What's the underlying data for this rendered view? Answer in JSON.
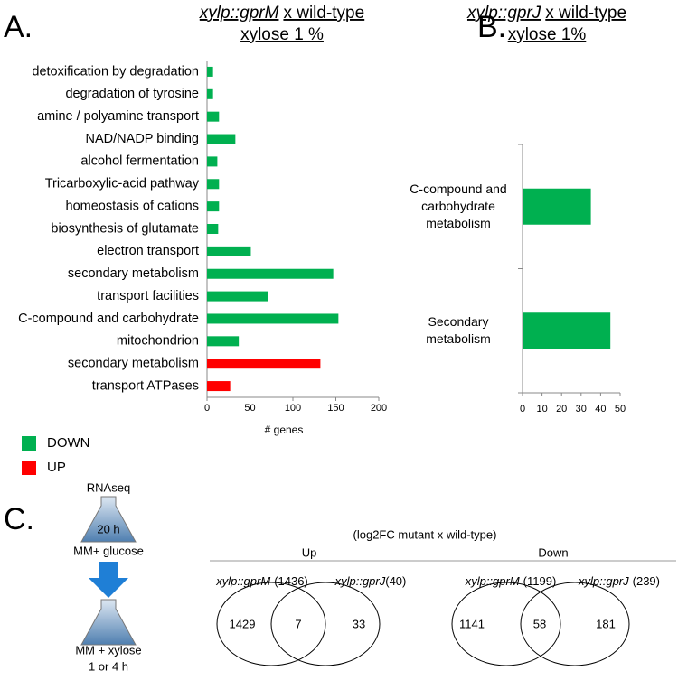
{
  "panels": [
    "A.",
    "B.",
    "C."
  ],
  "chart_data": [
    {
      "type": "bar",
      "orientation": "horizontal",
      "title": {
        "italic": "xylp::gprM",
        "rest": "x wild-type"
      },
      "subtitle": "xylose 1 %",
      "x_label": "# genes",
      "categories": [
        "detoxification by degradation",
        "degradation of tyrosine",
        "amine / polyamine transport",
        "NAD/NADP binding",
        "alcohol fermentation",
        "Tricarboxylic-acid pathway",
        "homeostasis of cations",
        "biosynthesis of glutamate",
        "electron transport",
        "secondary metabolism",
        "transport facilities",
        "C-compound and carbohydrate",
        "mitochondrion",
        "secondary metabolism",
        "transport ATPases"
      ],
      "series": [
        {
          "name": "DOWN",
          "color": "#00b050",
          "values": [
            7,
            7,
            14,
            33,
            12,
            14,
            14,
            13,
            51,
            147,
            71,
            153,
            37,
            null,
            null
          ]
        },
        {
          "name": "UP",
          "color": "#ff0000",
          "values": [
            null,
            null,
            null,
            null,
            null,
            null,
            null,
            null,
            null,
            null,
            null,
            null,
            null,
            132,
            27
          ]
        }
      ],
      "xlim": [
        0,
        200
      ],
      "xticks": [
        0,
        50,
        100,
        150,
        200
      ],
      "legend": "bottom-left"
    },
    {
      "type": "bar",
      "orientation": "horizontal",
      "title": {
        "italic": "xylp::gprJ",
        "rest": "x wild-type"
      },
      "subtitle": "xylose 1%",
      "categories": [
        "C-compound and carbohydrate metabolism",
        "Secondary metabolism"
      ],
      "values": [
        35,
        45
      ],
      "color": "#00b050",
      "xlim": [
        0,
        50
      ],
      "xticks": [
        0,
        10,
        20,
        30,
        40,
        50
      ]
    }
  ],
  "protocol": {
    "step1": "RNAseq",
    "time1": "20 h",
    "medium1": "MM+ glucose",
    "medium2": "MM + xylose",
    "time2": "1 or 4 h"
  },
  "venn": {
    "header": "(log2FC mutant x wild-type)",
    "groups": [
      {
        "title": "Up",
        "left": {
          "name": "xylp::gprM",
          "count": "(1436)"
        },
        "right": {
          "name": "xylp::gprJ",
          "count": "(40)"
        },
        "only_left": 1429,
        "both": 7,
        "only_right": 33
      },
      {
        "title": "Down",
        "left": {
          "name": "xylp::gprM",
          "count": "(1199)"
        },
        "right": {
          "name": "xylp::gprJ",
          "count": "(239)"
        },
        "only_left": 1141,
        "both": 58,
        "only_right": 181
      }
    ]
  }
}
